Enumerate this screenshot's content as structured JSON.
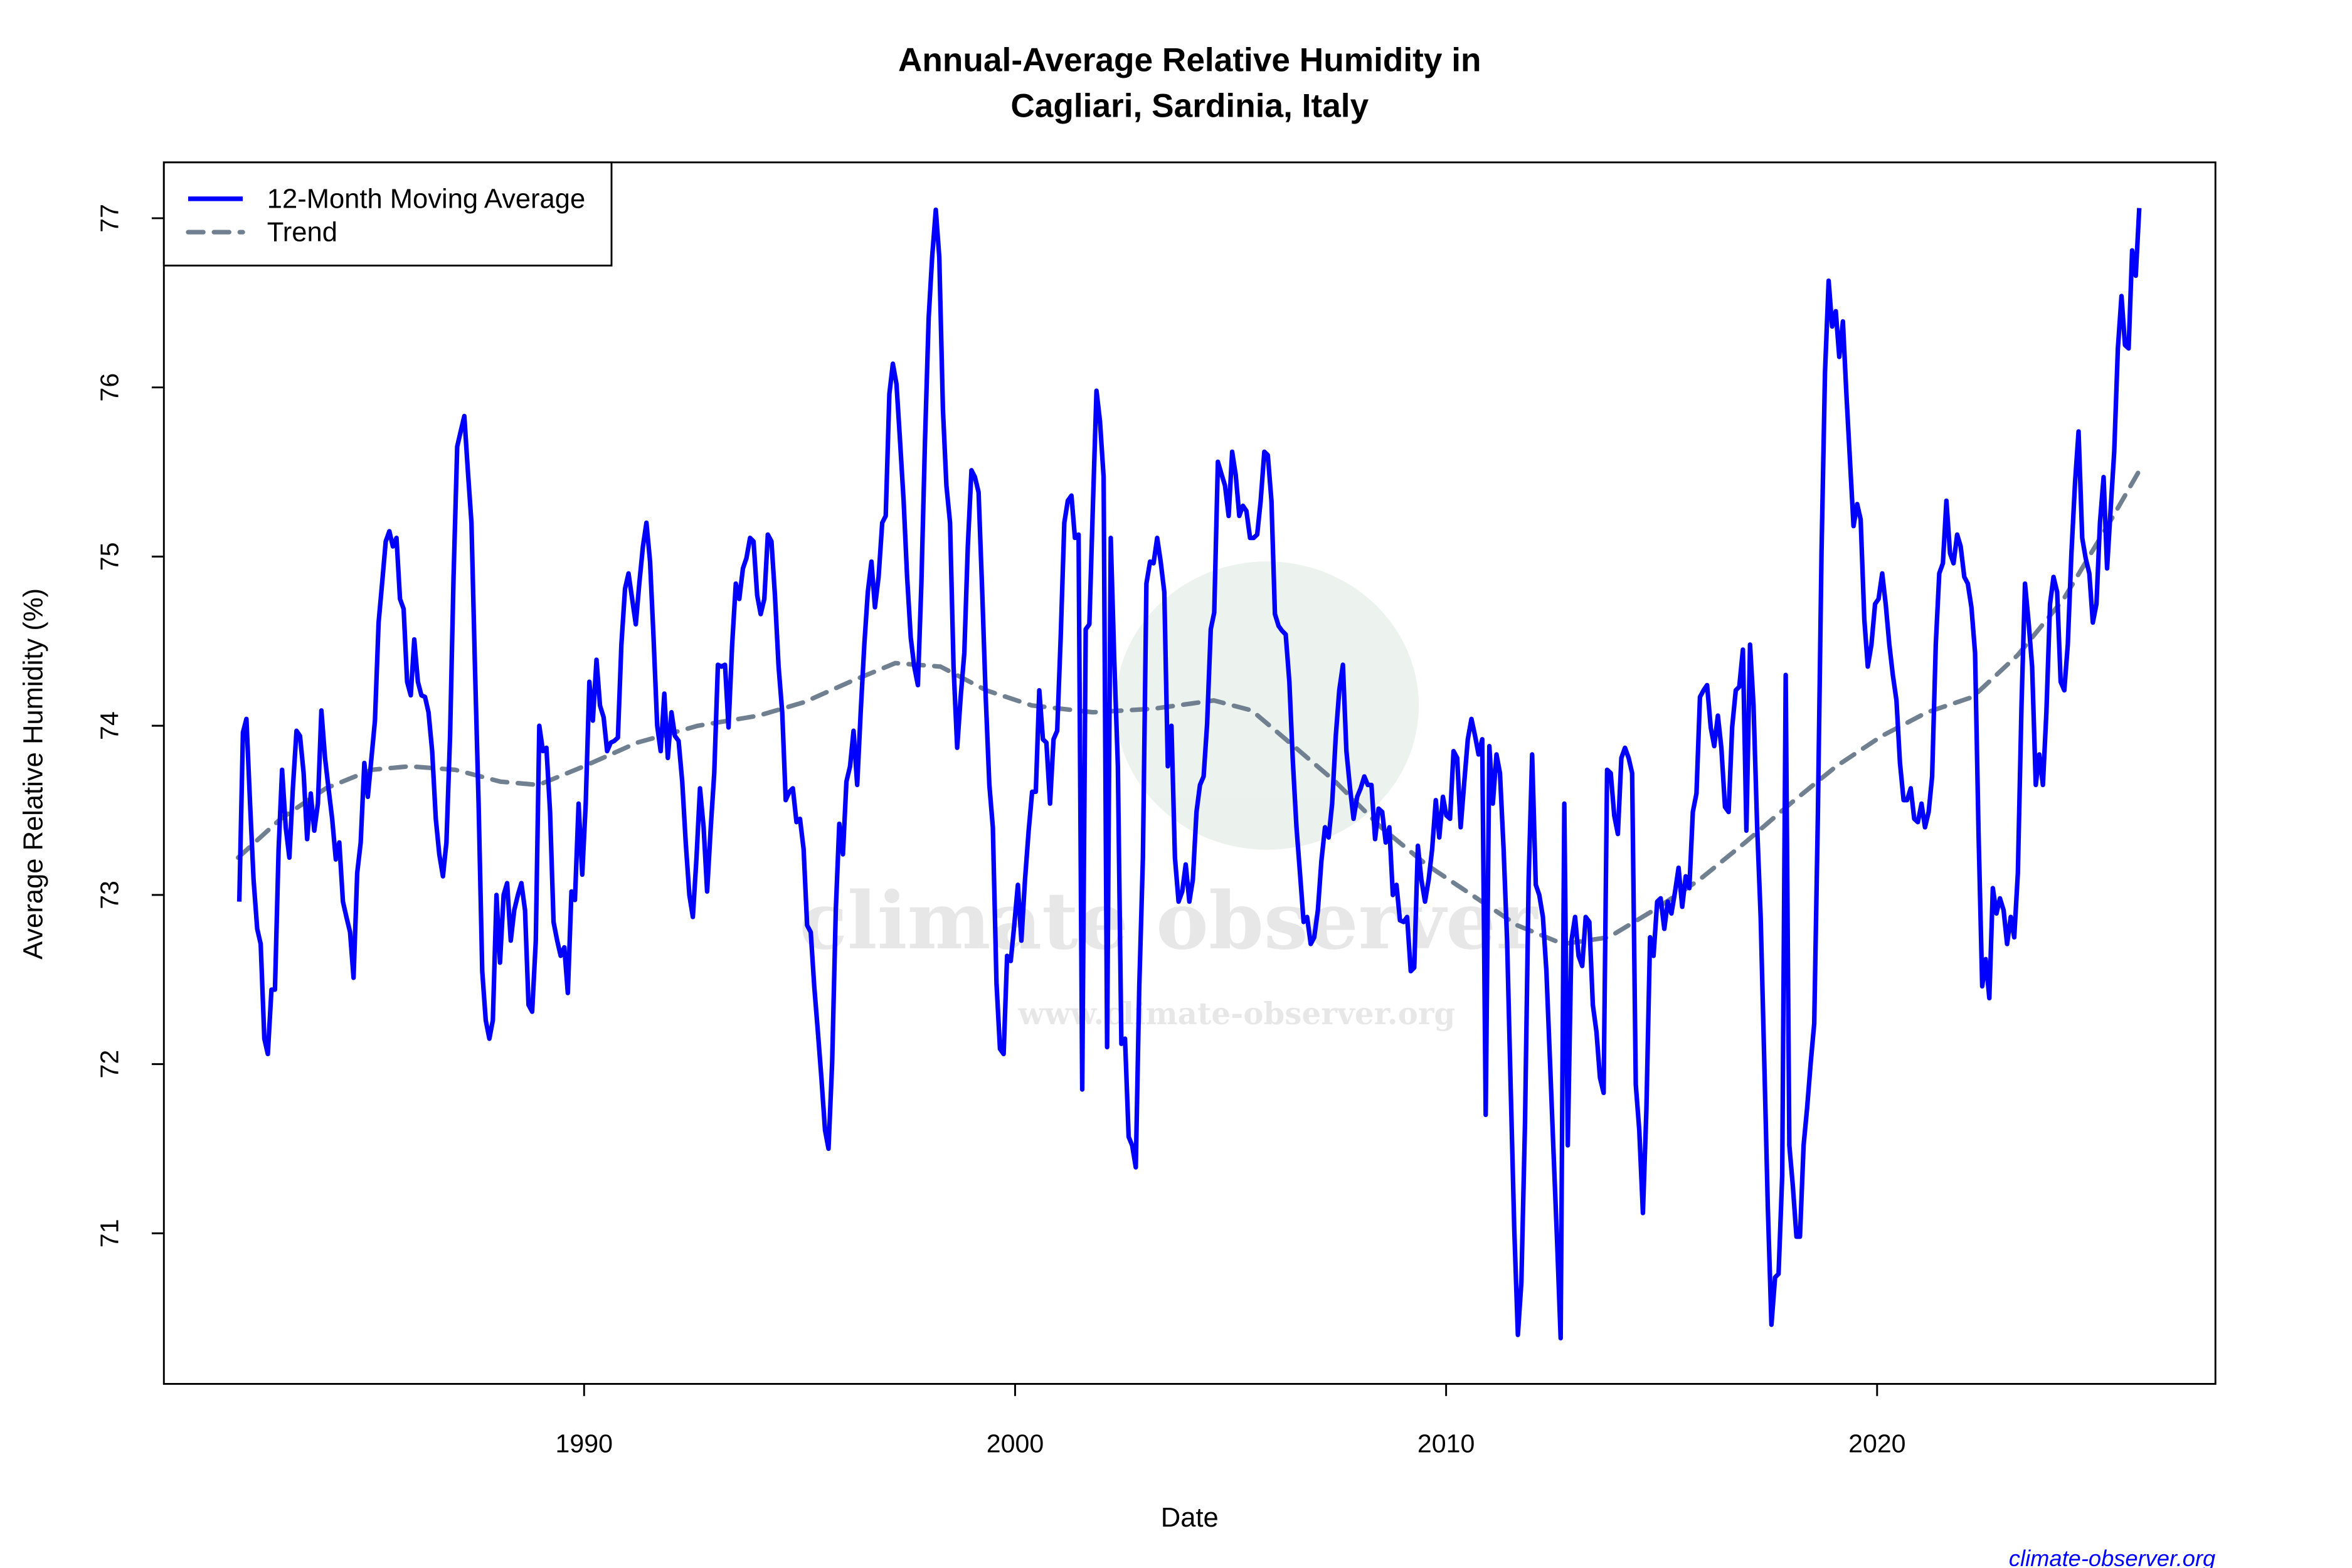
{
  "chart_data": {
    "type": "line",
    "title": "Annual-Average Relative Humidity in\nCagliari, Sardinia, Italy",
    "title_lines": [
      "Annual-Average Relative Humidity in",
      "Cagliari, Sardinia, Italy"
    ],
    "xlabel": "Date",
    "ylabel": "Average Relative Humidity (%)",
    "xlim": [
      1980.25,
      2027.85
    ],
    "ylim": [
      70.11,
      77.33
    ],
    "x_ticks": [
      1990,
      2000,
      2010,
      2020
    ],
    "y_ticks": [
      71,
      72,
      73,
      74,
      75,
      76,
      77
    ],
    "grid": false,
    "legend": {
      "placement": "top-left",
      "entries": [
        "12-Month Moving Average",
        "Trend"
      ]
    },
    "series": [
      {
        "name": "12-Month Moving Average",
        "color": "#0000ff",
        "style": "solid",
        "start": "1982-01",
        "end": "2026-02",
        "frequency": "monthly",
        "values": [
          72.96,
          73.96,
          74.04,
          73.54,
          73.09,
          72.8,
          72.71,
          72.15,
          72.06,
          72.44,
          72.44,
          73.27,
          73.74,
          73.4,
          73.22,
          73.63,
          73.97,
          73.94,
          73.72,
          73.33,
          73.6,
          73.38,
          73.54,
          74.09,
          73.81,
          73.63,
          73.45,
          73.21,
          73.31,
          72.96,
          72.87,
          72.78,
          72.51,
          73.13,
          73.31,
          73.78,
          73.58,
          73.81,
          74.03,
          74.61,
          74.84,
          75.09,
          75.15,
          75.06,
          75.11,
          74.75,
          74.69,
          74.26,
          74.18,
          74.51,
          74.26,
          74.18,
          74.17,
          74.08,
          73.85,
          73.45,
          73.24,
          73.11,
          73.31,
          73.94,
          74.88,
          75.65,
          75.74,
          75.83,
          75.51,
          75.2,
          74.35,
          73.54,
          72.55,
          72.26,
          72.15,
          72.26,
          73.0,
          72.6,
          73.0,
          73.07,
          72.73,
          72.91,
          73.0,
          73.07,
          72.91,
          72.35,
          72.31,
          72.73,
          74.0,
          73.85,
          73.87,
          73.49,
          72.84,
          72.73,
          72.64,
          72.69,
          72.42,
          73.02,
          72.97,
          73.54,
          73.12,
          73.54,
          74.26,
          74.03,
          74.39,
          74.12,
          74.05,
          73.85,
          73.9,
          73.91,
          73.93,
          74.48,
          74.81,
          74.9,
          74.75,
          74.6,
          74.84,
          75.06,
          75.2,
          74.97,
          74.52,
          74.0,
          73.85,
          74.19,
          73.81,
          74.08,
          73.94,
          73.91,
          73.67,
          73.31,
          73.0,
          72.87,
          73.22,
          73.63,
          73.4,
          73.02,
          73.4,
          73.72,
          74.36,
          74.35,
          74.36,
          73.99,
          74.48,
          74.84,
          74.75,
          74.93,
          74.99,
          75.11,
          75.09,
          74.77,
          74.66,
          74.75,
          75.13,
          75.09,
          74.77,
          74.35,
          74.08,
          73.56,
          73.61,
          73.63,
          73.43,
          73.45,
          73.27,
          72.82,
          72.78,
          72.46,
          72.19,
          71.92,
          71.61,
          71.5,
          72.01,
          72.91,
          73.42,
          73.24,
          73.67,
          73.76,
          73.97,
          73.65,
          74.08,
          74.48,
          74.79,
          74.97,
          74.7,
          74.88,
          75.2,
          75.24,
          75.96,
          76.14,
          76.02,
          75.69,
          75.33,
          74.88,
          74.52,
          74.35,
          74.24,
          74.84,
          75.69,
          76.41,
          76.77,
          77.05,
          76.77,
          75.87,
          75.42,
          75.2,
          74.35,
          73.87,
          74.17,
          74.43,
          75.06,
          75.51,
          75.47,
          75.38,
          74.79,
          74.17,
          73.65,
          73.4,
          72.48,
          72.09,
          72.06,
          72.64,
          72.61,
          72.82,
          73.06,
          72.73,
          73.09,
          73.38,
          73.61,
          73.61,
          74.21,
          73.92,
          73.9,
          73.54,
          73.92,
          73.97,
          74.52,
          75.2,
          75.33,
          75.36,
          75.11,
          75.13,
          71.85,
          74.57,
          74.6,
          75.29,
          75.98,
          75.8,
          75.47,
          72.1,
          75.11,
          74.39,
          73.76,
          72.12,
          72.15,
          71.57,
          71.52,
          71.39,
          72.46,
          73.22,
          74.84,
          74.97,
          74.96,
          75.11,
          74.97,
          74.79,
          73.76,
          74.0,
          73.22,
          72.96,
          73.02,
          73.18,
          72.96,
          73.09,
          73.49,
          73.65,
          73.7,
          74.01,
          74.57,
          74.67,
          75.56,
          75.49,
          75.42,
          75.24,
          75.62,
          75.48,
          75.24,
          75.3,
          75.27,
          75.11,
          75.11,
          75.13,
          75.33,
          75.62,
          75.6,
          75.33,
          74.66,
          74.59,
          74.56,
          74.54,
          74.26,
          73.79,
          73.4,
          73.13,
          72.84,
          72.87,
          72.71,
          72.75,
          72.91,
          73.2,
          73.4,
          73.34,
          73.54,
          73.94,
          74.21,
          74.36,
          73.85,
          73.63,
          73.45,
          73.58,
          73.63,
          73.7,
          73.65,
          73.65,
          73.33,
          73.51,
          73.49,
          73.31,
          73.4,
          73.0,
          73.06,
          72.85,
          72.84,
          72.87,
          72.55,
          72.57,
          73.29,
          73.09,
          72.96,
          73.09,
          73.27,
          73.56,
          73.34,
          73.58,
          73.47,
          73.45,
          73.85,
          73.81,
          73.4,
          73.67,
          73.92,
          74.04,
          73.94,
          73.83,
          73.92,
          71.7,
          73.88,
          73.54,
          73.83,
          73.72,
          73.27,
          72.73,
          71.85,
          71.03,
          70.4,
          70.71,
          71.65,
          73.09,
          73.83,
          73.06,
          73.0,
          72.87,
          72.55,
          72.01,
          71.48,
          70.94,
          70.38,
          73.54,
          71.52,
          72.73,
          72.87,
          72.64,
          72.58,
          72.87,
          72.84,
          72.35,
          72.19,
          71.92,
          71.83,
          73.74,
          73.72,
          73.47,
          73.36,
          73.81,
          73.87,
          73.81,
          73.72,
          71.88,
          71.61,
          71.12,
          71.73,
          72.75,
          72.64,
          72.96,
          72.98,
          72.8,
          72.96,
          72.89,
          73.02,
          73.16,
          72.93,
          73.11,
          73.04,
          73.49,
          73.6,
          74.17,
          74.21,
          74.24,
          73.99,
          73.88,
          74.06,
          73.87,
          73.52,
          73.49,
          73.99,
          74.21,
          74.23,
          74.45,
          73.38,
          74.48,
          74.12,
          73.4,
          72.87,
          72.01,
          71.16,
          70.46,
          70.74,
          70.76,
          71.34,
          74.3,
          71.52,
          71.28,
          70.98,
          70.98,
          71.52,
          71.74,
          72.01,
          72.24,
          73.47,
          75.02,
          76.09,
          76.63,
          76.36,
          76.45,
          76.18,
          76.39,
          75.96,
          75.56,
          75.18,
          75.31,
          75.22,
          74.63,
          74.35,
          74.48,
          74.72,
          74.75,
          74.9,
          74.72,
          74.48,
          74.3,
          74.15,
          73.78,
          73.56,
          73.56,
          73.63,
          73.45,
          73.43,
          73.54,
          73.4,
          73.49,
          73.7,
          74.48,
          74.9,
          74.96,
          75.33,
          75.02,
          74.96,
          75.13,
          75.06,
          74.88,
          74.84,
          74.7,
          74.43,
          73.36,
          72.46,
          72.62,
          72.39,
          73.04,
          72.89,
          72.98,
          72.91,
          72.71,
          72.87,
          72.75,
          73.13,
          74.12,
          74.84,
          74.61,
          74.35,
          73.65,
          73.83,
          73.65,
          74.08,
          74.72,
          74.88,
          74.79,
          74.26,
          74.21,
          74.48,
          75.02,
          75.44,
          75.74,
          75.11,
          74.99,
          74.9,
          74.61,
          74.72,
          75.2,
          75.47,
          74.93,
          75.29,
          75.62,
          76.23,
          76.54,
          76.25,
          76.23,
          76.81,
          76.66,
          77.06
        ]
      },
      {
        "name": "Trend",
        "color": "#708090",
        "style": "dashed",
        "x": [
          1981.97,
          1982.96,
          1984.01,
          1985.07,
          1985.95,
          1987.01,
          1988.06,
          1988.94,
          1990.0,
          1991.23,
          1992.64,
          1994.05,
          1995.11,
          1996.17,
          1997.22,
          1998.27,
          1999.33,
          2000.39,
          2001.8,
          2003.2,
          2004.61,
          2005.49,
          2006.37,
          2007.43,
          2008.49,
          2009.54,
          2010.6,
          2011.65,
          2012.71,
          2013.77,
          2014.82,
          2015.88,
          2016.94,
          2017.99,
          2019.05,
          2020.11,
          2021.16,
          2022.22,
          2023.27,
          2024.33,
          2025.39,
          2026.09
        ],
        "y": [
          73.22,
          73.45,
          73.63,
          73.74,
          73.76,
          73.74,
          73.67,
          73.65,
          73.76,
          73.9,
          74.0,
          74.06,
          74.14,
          74.26,
          74.37,
          74.35,
          74.21,
          74.12,
          74.08,
          74.1,
          74.15,
          74.09,
          73.9,
          73.67,
          73.4,
          73.18,
          73.0,
          72.82,
          72.71,
          72.75,
          72.91,
          73.09,
          73.31,
          73.54,
          73.76,
          73.94,
          74.08,
          74.17,
          74.42,
          74.75,
          75.2,
          75.51
        ]
      }
    ]
  },
  "watermark": {
    "logo_text": "climate observer",
    "url_text": "www.climate-observer.org"
  },
  "credit": {
    "text": "climate-observer.org",
    "color": "#0000ff"
  }
}
